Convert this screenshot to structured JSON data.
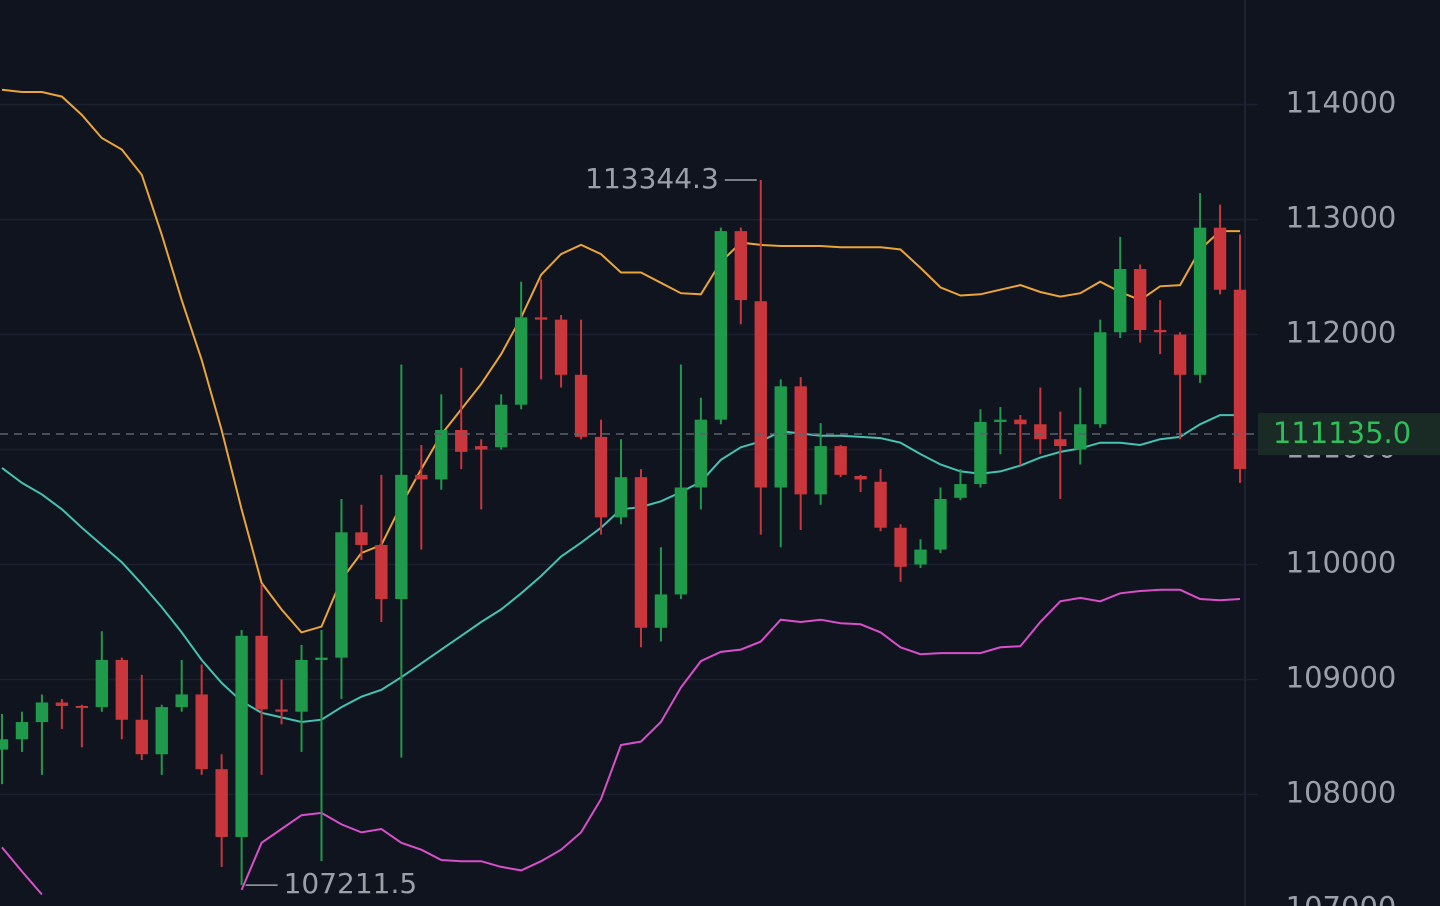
{
  "chart_data": {
    "type": "candlestick",
    "ylim": [
      107030,
      114910
    ],
    "yticks": [
      107000,
      108000,
      109000,
      110000,
      111000,
      112000,
      113000,
      114000
    ],
    "grid": true,
    "up_color": "#1f9a4a",
    "down_color": "#c9363c",
    "open": [
      108390,
      108480,
      108630,
      108800,
      108770,
      108760,
      109170,
      108650,
      108350,
      108760,
      108870,
      108220,
      107630,
      109380,
      108740,
      108720,
      109170,
      109190,
      110280,
      110170,
      109700,
      110780,
      110740,
      111170,
      111030,
      111020,
      111390,
      112150,
      112130,
      111650,
      111110,
      110410,
      110760,
      109450,
      109740,
      110670,
      111260,
      112900,
      112290,
      110670,
      111550,
      110610,
      111030,
      110770,
      110720,
      110320,
      110000,
      110130,
      110580,
      110700,
      111240,
      111260,
      111220,
      111090,
      111000,
      111220,
      112020,
      112570,
      112040,
      112000,
      111650,
      112930,
      112390
    ],
    "high": [
      108700,
      108720,
      108870,
      108830,
      108780,
      109420,
      109190,
      109040,
      108780,
      109170,
      109130,
      108350,
      109430,
      109830,
      109000,
      109300,
      109430,
      110570,
      110520,
      110780,
      111740,
      111040,
      111480,
      111710,
      111090,
      111480,
      112460,
      112480,
      112170,
      112130,
      111260,
      111090,
      110830,
      110150,
      111740,
      111450,
      112930,
      112930,
      113344.3,
      111610,
      111630,
      111230,
      111040,
      110780,
      110830,
      110350,
      110220,
      110670,
      110830,
      111350,
      111370,
      111300,
      111540,
      111330,
      111540,
      112130,
      112850,
      112610,
      112300,
      112020,
      113230,
      113130,
      112870
    ],
    "low": [
      108090,
      108370,
      108170,
      108570,
      108410,
      108720,
      108480,
      108300,
      108170,
      108720,
      108170,
      107370,
      107211.5,
      108170,
      108610,
      108370,
      107420,
      108830,
      110040,
      109500,
      108320,
      110130,
      110650,
      110830,
      110480,
      111000,
      111350,
      111610,
      111540,
      111090,
      110260,
      110350,
      109280,
      109330,
      109700,
      110480,
      111220,
      112090,
      110260,
      110150,
      110300,
      110520,
      110760,
      110630,
      110290,
      109850,
      109970,
      110100,
      110560,
      110670,
      110960,
      110860,
      110960,
      110570,
      110870,
      111190,
      111970,
      111930,
      111830,
      111090,
      111580,
      112350,
      110710
    ],
    "close": [
      108480,
      108630,
      108800,
      108770,
      108760,
      109170,
      108650,
      108350,
      108760,
      108870,
      108220,
      107630,
      109380,
      108740,
      108720,
      109170,
      109190,
      110280,
      110170,
      109700,
      110780,
      110740,
      111170,
      110980,
      111000,
      111390,
      112150,
      112130,
      111650,
      111110,
      110410,
      110760,
      109450,
      109740,
      110670,
      111260,
      112900,
      112300,
      110670,
      111550,
      110610,
      111030,
      110780,
      110740,
      110320,
      109980,
      110130,
      110570,
      110700,
      111240,
      111260,
      111220,
      111090,
      111030,
      111220,
      112020,
      112570,
      112040,
      112020,
      111650,
      112930,
      112390,
      110830
    ],
    "lines": [
      {
        "color": "#e9a53b",
        "values": [
          114130,
          114110,
          114110,
          114070,
          113910,
          113710,
          113610,
          113390,
          112870,
          112300,
          111780,
          111170,
          110480,
          109840,
          109610,
          109410,
          109460,
          109870,
          110100,
          110170,
          110520,
          110830,
          111130,
          111350,
          111570,
          111830,
          112150,
          112520,
          112700,
          112780,
          112700,
          112540,
          112540,
          112450,
          112360,
          112350,
          112630,
          112800,
          112780,
          112770,
          112770,
          112770,
          112760,
          112760,
          112760,
          112740,
          112580,
          112410,
          112340,
          112350,
          112390,
          112430,
          112370,
          112330,
          112360,
          112460,
          112370,
          112300,
          112420,
          112430,
          112740,
          112900,
          112900
        ]
      },
      {
        "color": "#45c2b1",
        "values": [
          110840,
          110710,
          110610,
          110480,
          110320,
          110170,
          110020,
          109830,
          109630,
          109410,
          109170,
          108970,
          108810,
          108710,
          108670,
          108630,
          108650,
          108760,
          108850,
          108910,
          109020,
          109140,
          109260,
          109380,
          109500,
          109610,
          109750,
          109900,
          110070,
          110190,
          110320,
          110480,
          110500,
          110550,
          110630,
          110720,
          110910,
          111020,
          111070,
          111160,
          111140,
          111120,
          111120,
          111110,
          111100,
          111060,
          110960,
          110870,
          110810,
          110790,
          110810,
          110860,
          110930,
          110980,
          111010,
          111060,
          111060,
          111040,
          111090,
          111110,
          111220,
          111300,
          111300
        ]
      },
      {
        "color": "#d84fcb",
        "values": [
          107540,
          107330,
          107130,
          null,
          null,
          null,
          null,
          null,
          null,
          null,
          null,
          null,
          107170,
          107580,
          107700,
          107820,
          107840,
          107740,
          107670,
          107700,
          107580,
          107520,
          107430,
          107420,
          107420,
          107370,
          107340,
          107420,
          107520,
          107670,
          107960,
          108430,
          108460,
          108630,
          108930,
          109160,
          109240,
          109260,
          109330,
          109520,
          109500,
          109520,
          109490,
          109480,
          109410,
          109280,
          109220,
          109230,
          109230,
          109230,
          109280,
          109290,
          109500,
          109680,
          109710,
          109680,
          109750,
          109770,
          109780,
          109780,
          109700,
          109690,
          109700
        ]
      }
    ],
    "last_price": {
      "value": 111135,
      "label": "111135.0"
    }
  }
}
